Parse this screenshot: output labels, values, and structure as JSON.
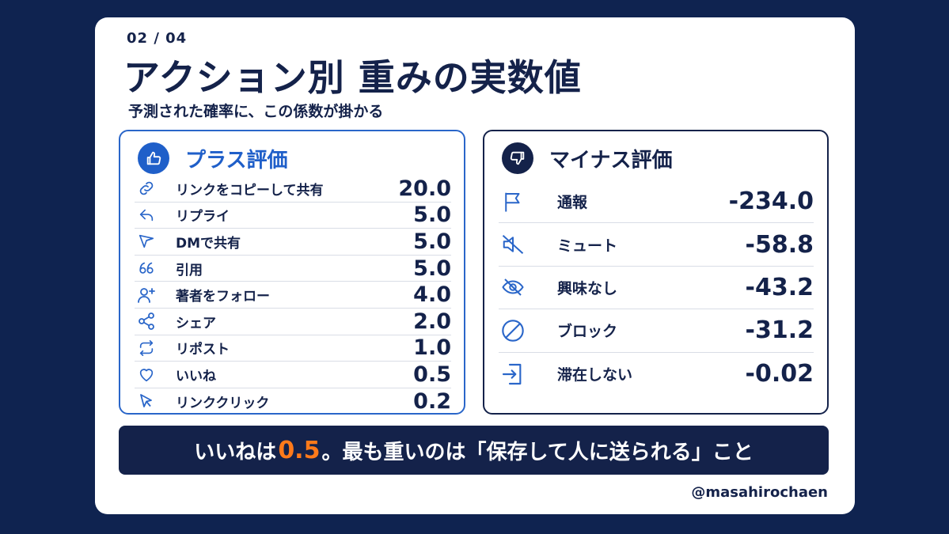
{
  "page_number": "02 / 04",
  "title": "アクション別 重みの実数値",
  "subtitle": "予測された確率に、この係数が掛かる",
  "plus": {
    "title": "プラス評価",
    "icon": "thumbs-up-icon",
    "accent": "#1f5fc9",
    "items": [
      {
        "label": "リンクをコピーして共有",
        "value": "20.0",
        "icon": "link-icon"
      },
      {
        "label": "リプライ",
        "value": "5.0",
        "icon": "reply-icon"
      },
      {
        "label": "DMで共有",
        "value": "5.0",
        "icon": "send-icon"
      },
      {
        "label": "引用",
        "value": "5.0",
        "icon": "quote-icon"
      },
      {
        "label": "著者をフォロー",
        "value": "4.0",
        "icon": "follow-user-icon"
      },
      {
        "label": "シェア",
        "value": "2.0",
        "icon": "share-icon"
      },
      {
        "label": "リポスト",
        "value": "1.0",
        "icon": "repost-icon"
      },
      {
        "label": "いいね",
        "value": "0.5",
        "icon": "heart-icon"
      },
      {
        "label": "リンククリック",
        "value": "0.2",
        "icon": "cursor-icon"
      }
    ]
  },
  "minus": {
    "title": "マイナス評価",
    "icon": "thumbs-down-icon",
    "accent": "#14224a",
    "items": [
      {
        "label": "通報",
        "value": "-234.0",
        "icon": "flag-icon"
      },
      {
        "label": "ミュート",
        "value": "-58.8",
        "icon": "mute-icon"
      },
      {
        "label": "興味なし",
        "value": "-43.2",
        "icon": "eye-off-icon"
      },
      {
        "label": "ブロック",
        "value": "-31.2",
        "icon": "block-icon"
      },
      {
        "label": "滞在しない",
        "value": "-0.02",
        "icon": "exit-icon"
      }
    ]
  },
  "banner": {
    "before": "いいねは",
    "highlight": "0.5",
    "after": "。最も重いのは「保存して人に送られる」こと",
    "highlight_color": "#ff7a1a"
  },
  "handle": "@masahirochaen",
  "colors": {
    "background": "#0f2350",
    "navy": "#14224a",
    "blue": "#1f5fc9"
  }
}
